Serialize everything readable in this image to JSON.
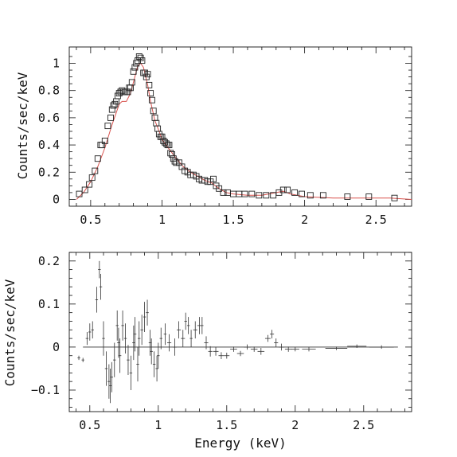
{
  "chart_data": [
    {
      "type": "scatter",
      "ylabel": "Counts/sec/keV",
      "xlim": [
        0.35,
        2.75
      ],
      "ylim": [
        -0.05,
        1.12
      ],
      "xticks": [
        0.5,
        1,
        1.5,
        2,
        2.5
      ],
      "xtick_labels": [
        "0.5",
        "1",
        "1.5",
        "2",
        "2.5"
      ],
      "yticks": [
        0,
        0.2,
        0.4,
        0.6,
        0.8,
        1
      ],
      "ytick_labels": [
        "0",
        "0.2",
        "0.4",
        "0.6",
        "0.8",
        "1"
      ],
      "colors": {
        "data": "#222222",
        "model": "#d9534f"
      },
      "series": [
        {
          "kind": "data-points",
          "marker": "square",
          "x": [
            0.42,
            0.46,
            0.49,
            0.51,
            0.53,
            0.55,
            0.57,
            0.58,
            0.6,
            0.62,
            0.64,
            0.65,
            0.66,
            0.67,
            0.68,
            0.69,
            0.7,
            0.71,
            0.72,
            0.73,
            0.74,
            0.75,
            0.76,
            0.77,
            0.78,
            0.79,
            0.8,
            0.81,
            0.82,
            0.83,
            0.84,
            0.85,
            0.86,
            0.87,
            0.88,
            0.89,
            0.9,
            0.91,
            0.92,
            0.93,
            0.94,
            0.95,
            0.96,
            0.97,
            0.98,
            0.99,
            1.0,
            1.01,
            1.02,
            1.03,
            1.04,
            1.05,
            1.06,
            1.07,
            1.08,
            1.09,
            1.1,
            1.12,
            1.14,
            1.16,
            1.18,
            1.2,
            1.22,
            1.24,
            1.26,
            1.28,
            1.3,
            1.32,
            1.34,
            1.36,
            1.38,
            1.4,
            1.43,
            1.46,
            1.5,
            1.54,
            1.58,
            1.63,
            1.68,
            1.73,
            1.78,
            1.82,
            1.85,
            1.88,
            1.93,
            1.98,
            2.04,
            2.13,
            2.3,
            2.45,
            2.63
          ],
          "y": [
            0.04,
            0.07,
            0.11,
            0.16,
            0.21,
            0.3,
            0.4,
            0.4,
            0.43,
            0.54,
            0.6,
            0.66,
            0.69,
            0.7,
            0.72,
            0.76,
            0.78,
            0.79,
            0.8,
            0.79,
            0.79,
            0.79,
            0.79,
            0.82,
            0.82,
            0.86,
            0.94,
            0.97,
            1.0,
            1.02,
            1.05,
            1.04,
            1.02,
            0.93,
            0.93,
            0.9,
            0.92,
            0.84,
            0.78,
            0.73,
            0.65,
            0.6,
            0.56,
            0.52,
            0.48,
            0.46,
            0.46,
            0.43,
            0.42,
            0.41,
            0.4,
            0.4,
            0.34,
            0.33,
            0.3,
            0.28,
            0.27,
            0.27,
            0.24,
            0.21,
            0.2,
            0.18,
            0.18,
            0.17,
            0.15,
            0.14,
            0.14,
            0.13,
            0.13,
            0.15,
            0.1,
            0.08,
            0.05,
            0.05,
            0.04,
            0.04,
            0.04,
            0.04,
            0.03,
            0.03,
            0.03,
            0.05,
            0.07,
            0.07,
            0.05,
            0.04,
            0.03,
            0.03,
            0.02,
            0.02,
            0.01
          ]
        },
        {
          "kind": "model-line",
          "x": [
            0.4,
            0.45,
            0.5,
            0.55,
            0.6,
            0.65,
            0.7,
            0.72,
            0.75,
            0.78,
            0.8,
            0.83,
            0.85,
            0.87,
            0.9,
            0.92,
            0.95,
            0.98,
            1.0,
            1.05,
            1.1,
            1.15,
            1.2,
            1.25,
            1.3,
            1.35,
            1.4,
            1.45,
            1.5,
            1.6,
            1.7,
            1.8,
            1.85,
            1.9,
            2.0,
            2.2,
            2.4,
            2.6,
            2.75
          ],
          "y": [
            0.0,
            0.05,
            0.13,
            0.24,
            0.38,
            0.55,
            0.7,
            0.72,
            0.72,
            0.78,
            0.86,
            0.98,
            1.0,
            0.97,
            0.84,
            0.72,
            0.58,
            0.5,
            0.44,
            0.37,
            0.3,
            0.24,
            0.2,
            0.17,
            0.14,
            0.12,
            0.08,
            0.05,
            0.04,
            0.03,
            0.03,
            0.05,
            0.06,
            0.04,
            0.02,
            0.01,
            0.01,
            0.01,
            0.0
          ]
        }
      ]
    },
    {
      "type": "scatter",
      "xlabel": "Energy (keV)",
      "ylabel": "Counts/sec/keV",
      "xlim": [
        0.35,
        2.85
      ],
      "ylim": [
        -0.15,
        0.22
      ],
      "xticks": [
        0.5,
        1,
        1.5,
        2,
        2.5
      ],
      "xtick_labels": [
        "0.5",
        "1",
        "1.5",
        "2",
        "2.5"
      ],
      "yticks": [
        -0.1,
        0,
        0.1,
        0.2
      ],
      "ytick_labels": [
        "−0.1",
        "0",
        "0.1",
        "0.2"
      ],
      "colors": {
        "data": "#333333",
        "zero": "#333333"
      },
      "series": [
        {
          "kind": "residuals-with-errorbars",
          "x": [
            0.42,
            0.45,
            0.48,
            0.5,
            0.52,
            0.55,
            0.57,
            0.58,
            0.6,
            0.62,
            0.64,
            0.65,
            0.66,
            0.68,
            0.7,
            0.71,
            0.72,
            0.74,
            0.76,
            0.78,
            0.8,
            0.82,
            0.83,
            0.85,
            0.86,
            0.88,
            0.9,
            0.92,
            0.94,
            0.95,
            0.97,
            0.99,
            1.0,
            1.02,
            1.05,
            1.08,
            1.12,
            1.15,
            1.18,
            1.2,
            1.22,
            1.24,
            1.27,
            1.3,
            1.32,
            1.35,
            1.38,
            1.42,
            1.46,
            1.5,
            1.55,
            1.6,
            1.65,
            1.7,
            1.75,
            1.8,
            1.83,
            1.86,
            1.9,
            1.95,
            2.0,
            2.1,
            2.3,
            2.45,
            2.63
          ],
          "y": [
            -0.025,
            -0.03,
            0.02,
            0.035,
            0.04,
            0.11,
            0.18,
            0.14,
            0.02,
            -0.05,
            -0.08,
            -0.09,
            -0.07,
            -0.03,
            0.05,
            0.01,
            -0.02,
            0.05,
            0.02,
            -0.03,
            -0.06,
            0.01,
            0.03,
            -0.04,
            0.02,
            0.04,
            0.07,
            0.08,
            0.01,
            -0.01,
            -0.04,
            -0.05,
            -0.02,
            0.02,
            0.03,
            0.01,
            0.0,
            0.04,
            0.02,
            0.06,
            0.05,
            0.02,
            0.04,
            0.05,
            0.05,
            0.01,
            -0.01,
            -0.01,
            -0.02,
            -0.02,
            -0.005,
            -0.015,
            0.0,
            -0.005,
            -0.01,
            0.02,
            0.03,
            0.01,
            0.0,
            -0.005,
            -0.005,
            -0.005,
            -0.003,
            0.002,
            0.0
          ],
          "err": [
            0.005,
            0.005,
            0.015,
            0.02,
            0.02,
            0.03,
            0.02,
            0.03,
            0.04,
            0.04,
            0.04,
            0.04,
            0.035,
            0.04,
            0.035,
            0.035,
            0.04,
            0.035,
            0.035,
            0.035,
            0.04,
            0.04,
            0.04,
            0.04,
            0.04,
            0.035,
            0.035,
            0.03,
            0.03,
            0.03,
            0.03,
            0.03,
            0.03,
            0.025,
            0.025,
            0.02,
            0.02,
            0.02,
            0.02,
            0.02,
            0.02,
            0.02,
            0.02,
            0.02,
            0.02,
            0.015,
            0.012,
            0.01,
            0.008,
            0.007,
            0.006,
            0.006,
            0.006,
            0.006,
            0.008,
            0.008,
            0.01,
            0.01,
            0.008,
            0.006,
            0.005,
            0.005,
            0.004,
            0.004,
            0.004
          ],
          "xerr": [
            0.01,
            0.01,
            0.01,
            0.01,
            0.01,
            0.01,
            0.01,
            0.01,
            0.01,
            0.01,
            0.01,
            0.01,
            0.01,
            0.01,
            0.01,
            0.01,
            0.01,
            0.01,
            0.01,
            0.01,
            0.01,
            0.01,
            0.01,
            0.01,
            0.01,
            0.01,
            0.01,
            0.01,
            0.01,
            0.01,
            0.01,
            0.01,
            0.01,
            0.01,
            0.01,
            0.015,
            0.015,
            0.015,
            0.015,
            0.01,
            0.01,
            0.01,
            0.015,
            0.015,
            0.01,
            0.015,
            0.015,
            0.02,
            0.02,
            0.02,
            0.025,
            0.025,
            0.025,
            0.025,
            0.025,
            0.02,
            0.015,
            0.015,
            0.02,
            0.025,
            0.03,
            0.05,
            0.08,
            0.07,
            0.09
          ]
        }
      ],
      "zero_line": {
        "from": 0.45,
        "to": 2.75,
        "y": 0
      }
    }
  ]
}
